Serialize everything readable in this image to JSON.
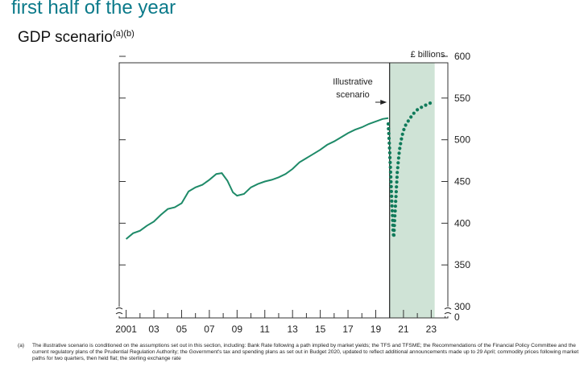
{
  "headline": "first half of the year",
  "subtitle": "GDP scenario",
  "subtitle_notes": "(a)(b)",
  "footnote": {
    "label": "(a)",
    "text": "The illustrative scenario is conditioned on the assumptions set out in this section, including: Bank Rate following a path implied by market yields; the TFS and TFSME; the Recommendations of the Financial Policy Committee and the current regulatory plans of the Prudential Regulation Authority; the Government's tax and spending plans as set out in Budget 2020, updated to reflect additional announcements made up to 29 April; commodity prices following market paths for two quarters, then held flat; the sterling exchange rate"
  },
  "chart_data": {
    "type": "line",
    "title": "",
    "ylabel": "£ billions",
    "xlabel": "",
    "ylim": [
      300,
      600
    ],
    "y_ticks": [
      600,
      550,
      500,
      450,
      400,
      350,
      300
    ],
    "y_zero_label": "0",
    "x_range": [
      2000.5,
      2024.2
    ],
    "x_ticks": [
      {
        "year": 2001,
        "label": "2001"
      },
      {
        "year": 2003,
        "label": "03"
      },
      {
        "year": 2005,
        "label": "05"
      },
      {
        "year": 2007,
        "label": "07"
      },
      {
        "year": 2009,
        "label": "09"
      },
      {
        "year": 2011,
        "label": "11"
      },
      {
        "year": 2013,
        "label": "13"
      },
      {
        "year": 2015,
        "label": "15"
      },
      {
        "year": 2017,
        "label": "17"
      },
      {
        "year": 2019,
        "label": "19"
      },
      {
        "year": 2021,
        "label": "21"
      },
      {
        "year": 2023,
        "label": "23"
      }
    ],
    "shaded_region": {
      "x_start": 2020.0,
      "x_end": 2023.25,
      "color": "#cfe3d6"
    },
    "annotation": {
      "text_line1": "Illustrative",
      "text_line2": "scenario",
      "arrow_to_x": 2019.8,
      "arrow_y": 545
    },
    "colors": {
      "line": "#1e8a68",
      "scenario": "#0f7a5a",
      "axis": "#333333"
    },
    "series": [
      {
        "name": "",
        "style": "solid",
        "points": [
          [
            2001.0,
            381
          ],
          [
            2001.5,
            388
          ],
          [
            2002.0,
            391
          ],
          [
            2002.5,
            397
          ],
          [
            2003.0,
            402
          ],
          [
            2003.5,
            410
          ],
          [
            2004.0,
            417
          ],
          [
            2004.5,
            419
          ],
          [
            2005.0,
            424
          ],
          [
            2005.5,
            438
          ],
          [
            2006.0,
            443
          ],
          [
            2006.5,
            446
          ],
          [
            2007.0,
            452
          ],
          [
            2007.5,
            459
          ],
          [
            2007.9,
            460
          ],
          [
            2008.3,
            451
          ],
          [
            2008.7,
            437
          ],
          [
            2009.0,
            433
          ],
          [
            2009.5,
            435
          ],
          [
            2010.0,
            443
          ],
          [
            2010.5,
            447
          ],
          [
            2011.0,
            450
          ],
          [
            2011.5,
            452
          ],
          [
            2012.0,
            455
          ],
          [
            2012.5,
            459
          ],
          [
            2013.0,
            465
          ],
          [
            2013.5,
            473
          ],
          [
            2014.0,
            478
          ],
          [
            2014.5,
            483
          ],
          [
            2015.0,
            488
          ],
          [
            2015.5,
            494
          ],
          [
            2016.0,
            498
          ],
          [
            2016.5,
            503
          ],
          [
            2017.0,
            508
          ],
          [
            2017.5,
            512
          ],
          [
            2018.0,
            515
          ],
          [
            2018.5,
            519
          ],
          [
            2019.0,
            522
          ],
          [
            2019.5,
            525
          ],
          [
            2019.9,
            526
          ]
        ]
      },
      {
        "name": "Illustrative scenario",
        "style": "dotted",
        "points": [
          [
            2019.9,
            519
          ],
          [
            2019.95,
            505
          ],
          [
            2020.0,
            488
          ],
          [
            2020.05,
            470
          ],
          [
            2020.1,
            450
          ],
          [
            2020.15,
            430
          ],
          [
            2020.2,
            412
          ],
          [
            2020.25,
            390
          ],
          [
            2020.3,
            383
          ],
          [
            2020.35,
            400
          ],
          [
            2020.45,
            430
          ],
          [
            2020.55,
            460
          ],
          [
            2020.7,
            487
          ],
          [
            2020.9,
            505
          ],
          [
            2021.1,
            516
          ],
          [
            2021.4,
            524
          ],
          [
            2021.7,
            531
          ],
          [
            2022.0,
            536
          ],
          [
            2022.4,
            540
          ],
          [
            2022.8,
            543
          ],
          [
            2023.2,
            546
          ]
        ]
      }
    ]
  }
}
